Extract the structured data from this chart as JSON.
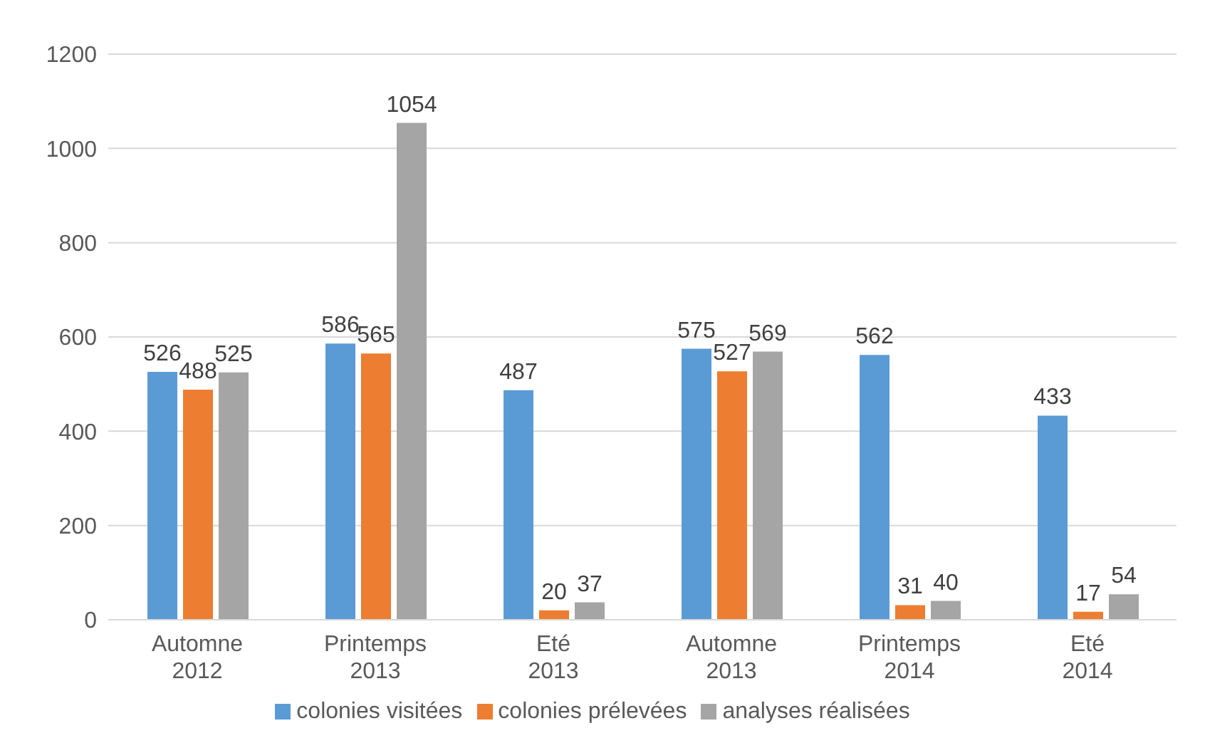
{
  "chart_data": {
    "type": "bar",
    "categories": [
      "Automne\n2012",
      "Printemps\n2013",
      "Eté\n2013",
      "Automne\n2013",
      "Printemps\n2014",
      "Eté\n2014"
    ],
    "series": [
      {
        "name": "colonies visitées",
        "color": "#5b9bd5",
        "values": [
          526,
          586,
          487,
          575,
          562,
          433
        ]
      },
      {
        "name": "colonies prélevées",
        "color": "#ed7d31",
        "values": [
          488,
          565,
          20,
          527,
          31,
          17
        ]
      },
      {
        "name": "analyses réalisées",
        "color": "#a5a5a5",
        "values": [
          525,
          1054,
          37,
          569,
          40,
          54
        ]
      }
    ],
    "ylim": [
      0,
      1200
    ],
    "yticks": [
      0,
      200,
      400,
      600,
      800,
      1000,
      1200
    ],
    "grid": "y",
    "legend": "bottom",
    "data_labels": true
  }
}
